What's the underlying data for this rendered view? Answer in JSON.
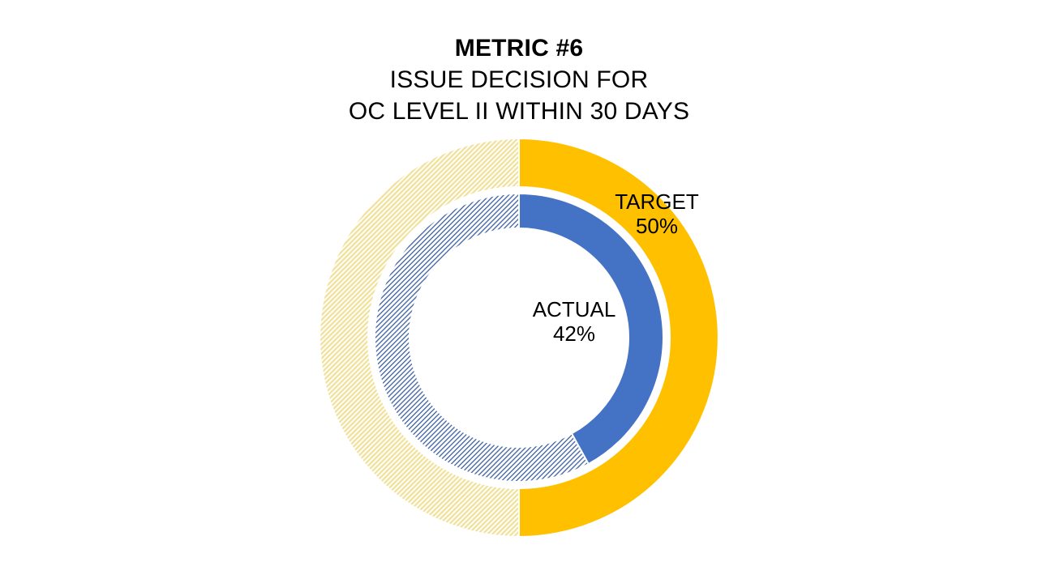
{
  "title": {
    "line1": "METRIC #6",
    "line2": "ISSUE DECISION FOR",
    "line3": "OC LEVEL II WITHIN 30 DAYS"
  },
  "chart_data": {
    "type": "pie",
    "subtype": "double-ring-donut",
    "title": "METRIC #6 ISSUE DECISION FOR OC LEVEL II WITHIN 30 DAYS",
    "start_angle_deg": 0,
    "direction": "clockwise",
    "legend": "none",
    "series": [
      {
        "name": "TARGET",
        "ring": "outer",
        "value": 50,
        "unit": "%",
        "display": "50%",
        "color": "#FFC000",
        "remainder_value": 50,
        "remainder_fill": "light-gold-diagonal-hatch"
      },
      {
        "name": "ACTUAL",
        "ring": "inner",
        "value": 42,
        "unit": "%",
        "display": "42%",
        "color": "#4472C4",
        "remainder_value": 58,
        "remainder_fill": "steel-blue-diagonal-hatch"
      }
    ]
  },
  "colors": {
    "gold": "#FFC000",
    "blue": "#4472C4",
    "hatch_gold_stripe": "#F1E19B",
    "hatch_blue_stripe": "#4A6CA8",
    "separator": "#FFFFFF",
    "text": "#000000",
    "background": "#FFFFFF"
  }
}
